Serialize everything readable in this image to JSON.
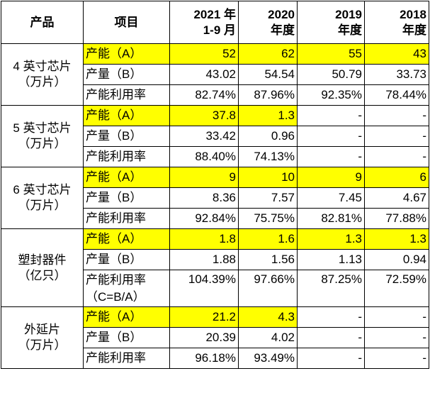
{
  "header": {
    "product": "产品",
    "item": "项目",
    "y2021_l1": "2021 年",
    "y2021_l2": "1-9 月",
    "y2020_l1": "2020",
    "y2020_l2": "年度",
    "y2019_l1": "2019",
    "y2019_l2": "年度",
    "y2018_l1": "2018",
    "y2018_l2": "年度"
  },
  "groups": [
    {
      "name_l1": "4 英寸芯片",
      "name_l2": "（万片）",
      "rows": [
        {
          "item": "产能（A）",
          "values": [
            "52",
            "62",
            "55",
            "43"
          ]
        },
        {
          "item": "产量（B）",
          "values": [
            "43.02",
            "54.54",
            "50.79",
            "33.73"
          ]
        },
        {
          "item": "产能利用率",
          "values": [
            "82.74%",
            "87.96%",
            "92.35%",
            "78.44%"
          ]
        }
      ]
    },
    {
      "name_l1": "5 英寸芯片",
      "name_l2": "（万片）",
      "rows": [
        {
          "item": "产能（A）",
          "values": [
            "37.8",
            "1.3",
            "-",
            "-"
          ]
        },
        {
          "item": "产量（B）",
          "values": [
            "33.42",
            "0.96",
            "-",
            "-"
          ]
        },
        {
          "item": "产能利用率",
          "values": [
            "88.40%",
            "74.13%",
            "-",
            "-"
          ]
        }
      ]
    },
    {
      "name_l1": "6 英寸芯片",
      "name_l2": "（万片）",
      "rows": [
        {
          "item": "产能（A）",
          "values": [
            "9",
            "10",
            "9",
            "6"
          ]
        },
        {
          "item": "产量（B）",
          "values": [
            "8.36",
            "7.57",
            "7.45",
            "4.67"
          ]
        },
        {
          "item": "产能利用率",
          "values": [
            "92.84%",
            "75.75%",
            "82.81%",
            "77.88%"
          ]
        }
      ]
    },
    {
      "name_l1": "塑封器件",
      "name_l2": "（亿只）",
      "rows": [
        {
          "item": "产能（A）",
          "values": [
            "1.8",
            "1.6",
            "1.3",
            "1.3"
          ]
        },
        {
          "item": "产量（B）",
          "values": [
            "1.88",
            "1.56",
            "1.13",
            "0.94"
          ]
        },
        {
          "item": "产能利用率",
          "item_l2": "（C=B/A）",
          "values": [
            "104.39%",
            "97.66%",
            "87.25%",
            "72.59%"
          ]
        }
      ]
    },
    {
      "name_l1": "外延片",
      "name_l2": "（万片）",
      "rows": [
        {
          "item": "产能（A）",
          "values": [
            "21.2",
            "4.3",
            "-",
            "-"
          ]
        },
        {
          "item": "产量（B）",
          "values": [
            "20.39",
            "4.02",
            "-",
            "-"
          ]
        },
        {
          "item": "产能利用率",
          "values": [
            "96.18%",
            "93.49%",
            "-",
            "-"
          ]
        }
      ]
    }
  ],
  "highlight_color": "#ffff00"
}
